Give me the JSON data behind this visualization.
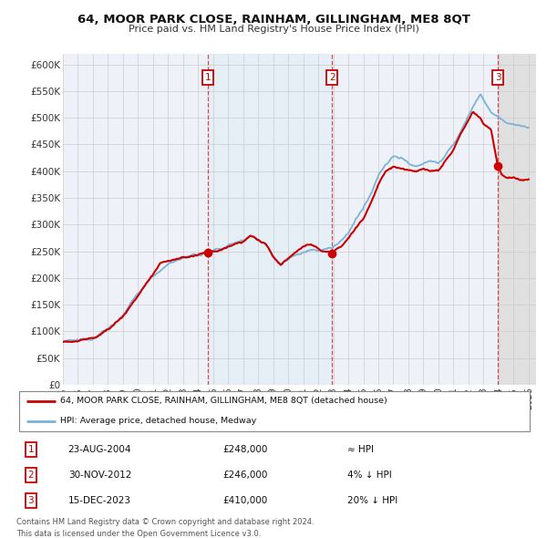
{
  "title": "64, MOOR PARK CLOSE, RAINHAM, GILLINGHAM, ME8 8QT",
  "subtitle": "Price paid vs. HM Land Registry's House Price Index (HPI)",
  "ylim": [
    0,
    620000
  ],
  "yticks": [
    0,
    50000,
    100000,
    150000,
    200000,
    250000,
    300000,
    350000,
    400000,
    450000,
    500000,
    550000,
    600000
  ],
  "ytick_labels": [
    "£0",
    "£50K",
    "£100K",
    "£150K",
    "£200K",
    "£250K",
    "£300K",
    "£350K",
    "£400K",
    "£450K",
    "£500K",
    "£550K",
    "£600K"
  ],
  "bg_color": "#ffffff",
  "plot_bg_color": "#eef2f8",
  "grid_color": "#cccccc",
  "hpi_line_color": "#7ab3d9",
  "price_line_color": "#cc0000",
  "sale_marker_color": "#cc0000",
  "dashed_line_color": "#cc3333",
  "shade_color": "#d8e8f5",
  "sale_events": [
    {
      "label": "1",
      "date_year": 2004.64,
      "price": 248000
    },
    {
      "label": "2",
      "date_year": 2012.92,
      "price": 246000
    },
    {
      "label": "3",
      "date_year": 2023.96,
      "price": 410000
    }
  ],
  "sale_table": [
    {
      "num": "1",
      "date": "23-AUG-2004",
      "price": "£248,000",
      "rel": "≈ HPI"
    },
    {
      "num": "2",
      "date": "30-NOV-2012",
      "price": "£246,000",
      "rel": "4% ↓ HPI"
    },
    {
      "num": "3",
      "date": "15-DEC-2023",
      "price": "£410,000",
      "rel": "20% ↓ HPI"
    }
  ],
  "legend_red_label": "64, MOOR PARK CLOSE, RAINHAM, GILLINGHAM, ME8 8QT (detached house)",
  "legend_blue_label": "HPI: Average price, detached house, Medway",
  "footer": "Contains HM Land Registry data © Crown copyright and database right 2024.\nThis data is licensed under the Open Government Licence v3.0.",
  "sale1_year": 2004.64,
  "sale2_year": 2012.92,
  "sale3_year": 2023.96,
  "xlim_start": 1995.0,
  "xlim_end": 2026.5
}
